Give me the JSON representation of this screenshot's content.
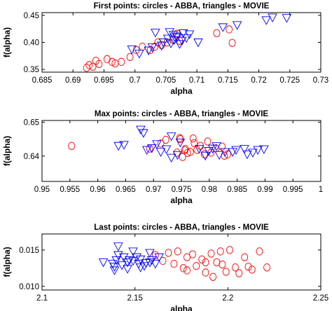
{
  "chart_data": [
    {
      "type": "scatter",
      "title": "First points: circles - ABBA, triangles - MOVIE",
      "xlabel": "alpha",
      "ylabel": "f(alpha)",
      "xlim": [
        0.685,
        0.73
      ],
      "ylim": [
        0.345,
        0.455
      ],
      "xticks": [
        "0.685",
        "0.69",
        "0.695",
        "0.7",
        "0.705",
        "0.71",
        "0.715",
        "0.72",
        "0.725",
        "0.73"
      ],
      "yticks": [
        "0.35",
        "0.40",
        "0.45"
      ],
      "grid": false,
      "series": [
        {
          "marker": "circle",
          "color": "#ff0000",
          "x": [
            0.6922,
            0.6926,
            0.6932,
            0.6937,
            0.6942,
            0.6955,
            0.6963,
            0.6968,
            0.6978,
            0.6992,
            0.7002,
            0.7012,
            0.7025,
            0.7032,
            0.7037,
            0.7043,
            0.7052,
            0.7062,
            0.7072,
            0.7068,
            0.7132,
            0.7152,
            0.7157
          ],
          "y": [
            0.353,
            0.358,
            0.355,
            0.366,
            0.36,
            0.369,
            0.364,
            0.361,
            0.364,
            0.373,
            0.386,
            0.392,
            0.386,
            0.392,
            0.4,
            0.395,
            0.4,
            0.405,
            0.403,
            0.416,
            0.417,
            0.424,
            0.399
          ]
        },
        {
          "marker": "triangle",
          "color": "#0000ff",
          "x": [
            0.6995,
            0.7007,
            0.7022,
            0.7028,
            0.7033,
            0.7043,
            0.7046,
            0.7053,
            0.7058,
            0.7063,
            0.7067,
            0.7072,
            0.7076,
            0.7083,
            0.7056,
            0.7062,
            0.7068,
            0.7078,
            0.7088,
            0.7102,
            0.7142,
            0.7165,
            0.7212,
            0.7222,
            0.7245
          ],
          "y": [
            0.387,
            0.379,
            0.385,
            0.391,
            0.418,
            0.394,
            0.4,
            0.407,
            0.398,
            0.404,
            0.411,
            0.397,
            0.403,
            0.408,
            0.419,
            0.414,
            0.409,
            0.417,
            0.415,
            0.4,
            0.428,
            0.432,
            0.441,
            0.446,
            0.445
          ]
        }
      ]
    },
    {
      "type": "scatter",
      "title": "Max points: circles - ABBA, triangles - MOVIE",
      "xlabel": "alpha",
      "ylabel": "f(alpha)",
      "xlim": [
        0.95,
        1.0
      ],
      "ylim": [
        0.6325,
        0.6505
      ],
      "xticks": [
        "0.95",
        "0.955",
        "0.96",
        "0.965",
        "0.97",
        "0.975",
        "0.98",
        "0.985",
        "0.99",
        "0.995",
        "1"
      ],
      "yticks": [
        "0.64",
        "0.65"
      ],
      "grid": false,
      "series": [
        {
          "marker": "circle",
          "color": "#ff0000",
          "x": [
            0.9553,
            0.9693,
            0.9713,
            0.9722,
            0.9742,
            0.9747,
            0.9752,
            0.9757,
            0.9761,
            0.9766,
            0.9771,
            0.9778,
            0.9784,
            0.9791,
            0.9797,
            0.9803,
            0.9812,
            0.9823,
            0.9827,
            0.9833,
            0.9748,
            0.9756,
            0.9773
          ],
          "y": [
            0.643,
            0.6422,
            0.6437,
            0.6448,
            0.641,
            0.6453,
            0.6397,
            0.6421,
            0.6409,
            0.6412,
            0.6452,
            0.6418,
            0.643,
            0.6405,
            0.6443,
            0.641,
            0.6423,
            0.6428,
            0.6401,
            0.6405,
            0.645,
            0.6417,
            0.6438
          ]
        },
        {
          "marker": "triangle",
          "color": "#0000ff",
          "x": [
            0.9637,
            0.9647,
            0.9677,
            0.9682,
            0.9688,
            0.9697,
            0.9706,
            0.9713,
            0.9723,
            0.9732,
            0.9743,
            0.9748,
            0.9782,
            0.9793,
            0.9799,
            0.9806,
            0.9813,
            0.9818,
            0.9828,
            0.9842,
            0.9848,
            0.9863,
            0.9868,
            0.9878,
            0.9887,
            0.9898,
            0.9732
          ],
          "y": [
            0.643,
            0.6433,
            0.6478,
            0.6468,
            0.6418,
            0.6423,
            0.6435,
            0.6412,
            0.642,
            0.6395,
            0.6403,
            0.644,
            0.6421,
            0.6401,
            0.6415,
            0.6422,
            0.6429,
            0.6403,
            0.6412,
            0.6412,
            0.6418,
            0.6421,
            0.6405,
            0.641,
            0.6418,
            0.642,
            0.6458
          ]
        }
      ]
    },
    {
      "type": "scatter",
      "title": "Last points: circles - ABBA, triangles - MOVIE",
      "xlabel": "alpha",
      "ylabel": "f(alpha)",
      "xlim": [
        2.1,
        2.25
      ],
      "ylim": [
        0.0095,
        0.0172
      ],
      "xticks": [
        "2.1",
        "2.15",
        "2.2",
        "2.25"
      ],
      "yticks": [
        "0.010",
        "0.015"
      ],
      "grid": false,
      "series": [
        {
          "marker": "circle",
          "color": "#ff0000",
          "x": [
            2.161,
            2.165,
            2.168,
            2.171,
            2.173,
            2.176,
            2.178,
            2.181,
            2.183,
            2.186,
            2.188,
            2.191,
            2.194,
            2.196,
            2.199,
            2.201,
            2.197,
            2.204,
            2.206,
            2.209,
            2.211,
            2.213,
            2.217,
            2.221,
            2.178,
            2.188,
            2.192
          ],
          "y": [
            0.0143,
            0.0135,
            0.0146,
            0.0131,
            0.0148,
            0.0125,
            0.014,
            0.0144,
            0.0128,
            0.0137,
            0.0119,
            0.0145,
            0.0133,
            0.0148,
            0.012,
            0.015,
            0.013,
            0.0126,
            0.0118,
            0.014,
            0.0127,
            0.0123,
            0.0148,
            0.0126,
            0.0122,
            0.0133,
            0.0113
          ]
        },
        {
          "marker": "triangle",
          "color": "#0000ff",
          "x": [
            2.133,
            2.138,
            2.139,
            2.14,
            2.141,
            2.143,
            2.144,
            2.146,
            2.147,
            2.149,
            2.151,
            2.152,
            2.153,
            2.155,
            2.156,
            2.158,
            2.159,
            2.161,
            2.163,
            2.141,
            2.149,
            2.153,
            2.139,
            2.146,
            2.158
          ],
          "y": [
            0.0133,
            0.0131,
            0.0127,
            0.0136,
            0.0143,
            0.0129,
            0.014,
            0.0133,
            0.0136,
            0.0135,
            0.014,
            0.0131,
            0.0137,
            0.0128,
            0.0132,
            0.0133,
            0.0136,
            0.0131,
            0.014,
            0.0155,
            0.0148,
            0.0126,
            0.0122,
            0.0124,
            0.0146
          ]
        }
      ]
    }
  ]
}
